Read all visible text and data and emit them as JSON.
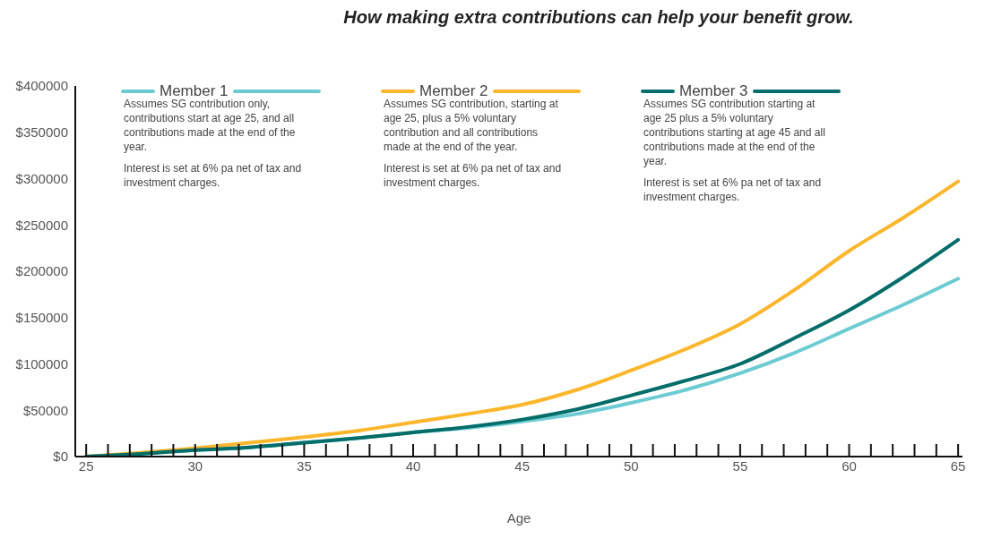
{
  "chart_data": {
    "type": "line",
    "title": "How making extra contributions can help your benefit grow.",
    "xlabel": "Age",
    "xlim": [
      24.5,
      65.2
    ],
    "xticks": [
      25,
      {
        "value": 26,
        "label": null
      },
      {
        "value": 27,
        "label": null
      },
      {
        "value": 28,
        "label": null
      },
      {
        "value": 29,
        "label": null
      },
      30,
      {
        "value": 31,
        "label": null
      },
      {
        "value": 32,
        "label": null
      },
      {
        "value": 33,
        "label": null
      },
      {
        "value": 34,
        "label": null
      },
      35,
      {
        "value": 36,
        "label": null
      },
      {
        "value": 37,
        "label": null
      },
      {
        "value": 38,
        "label": null
      },
      {
        "value": 39,
        "label": null
      },
      40,
      {
        "value": 41,
        "label": null
      },
      {
        "value": 42,
        "label": null
      },
      {
        "value": 43,
        "label": null
      },
      {
        "value": 44,
        "label": null
      },
      45,
      {
        "value": 46,
        "label": null
      },
      {
        "value": 47,
        "label": null
      },
      {
        "value": 48,
        "label": null
      },
      {
        "value": 49,
        "label": null
      },
      50,
      {
        "value": 51,
        "label": null
      },
      {
        "value": 52,
        "label": null
      },
      {
        "value": 53,
        "label": null
      },
      {
        "value": 54,
        "label": null
      },
      55,
      {
        "value": 56,
        "label": null
      },
      {
        "value": 57,
        "label": null
      },
      {
        "value": 58,
        "label": null
      },
      {
        "value": 59,
        "label": null
      },
      60,
      {
        "value": 61,
        "label": null
      },
      {
        "value": 62,
        "label": null
      },
      {
        "value": 63,
        "label": null
      },
      {
        "value": 64,
        "label": null
      },
      65
    ],
    "ylim": [
      0,
      400000
    ],
    "yticks": [
      {
        "value": 0,
        "label": "$0"
      },
      {
        "value": 50000,
        "label": "$50000"
      },
      {
        "value": 100000,
        "label": "$100000"
      },
      {
        "value": 150000,
        "label": "$150000"
      },
      {
        "value": 200000,
        "label": "$200000"
      },
      {
        "value": 250000,
        "label": "$250000"
      },
      {
        "value": 300000,
        "label": "$300000"
      },
      {
        "value": 350000,
        "label": "$350000"
      },
      {
        "value": 400000,
        "label": "$400000"
      }
    ],
    "x": [
      25,
      27.5,
      30,
      32.5,
      35,
      37.5,
      40,
      42.5,
      45,
      47.5,
      50,
      52.5,
      55,
      57.5,
      60,
      62.5,
      65
    ],
    "series": [
      {
        "name": "Member 1",
        "color": "#6ccbd2",
        "values": [
          0,
          3000,
          7000,
          10000,
          15000,
          20000,
          26000,
          31000,
          38000,
          46000,
          58000,
          72000,
          90000,
          112000,
          138000,
          164000,
          192000
        ]
      },
      {
        "name": "Member 2",
        "color": "#fbb62c",
        "values": [
          0,
          4000,
          9000,
          15000,
          21000,
          28000,
          37000,
          46000,
          56000,
          72000,
          93000,
          116000,
          143000,
          180000,
          222000,
          258000,
          297000
        ]
      },
      {
        "name": "Member 3",
        "color": "#036d6a",
        "values": [
          0,
          3000,
          7000,
          10000,
          15000,
          20000,
          26000,
          32000,
          40000,
          51000,
          66000,
          82000,
          100000,
          128000,
          158000,
          194000,
          234000
        ]
      }
    ],
    "annotations": [
      "Assumes SG contribution only, contributions start at age 25, and all contributions made at the end of the year.",
      "Interest is set at 6% pa net of tax and investment charges.",
      "Assumes SG contribution, starting at age 25, plus a 5% voluntary contribution and all contributions made at the end of the year.",
      "Interest is set at 6% pa net of tax and investment charges.",
      "Assumes SG contribution starting at age 25 plus a  5% voluntary contributions starting  at age 45 and all contributions made at the end of the year.",
      "Interest is set at 6% pa net of tax and investment charges."
    ],
    "legend": "top",
    "grid": false,
    "marker": "none",
    "line_style": "solid"
  }
}
